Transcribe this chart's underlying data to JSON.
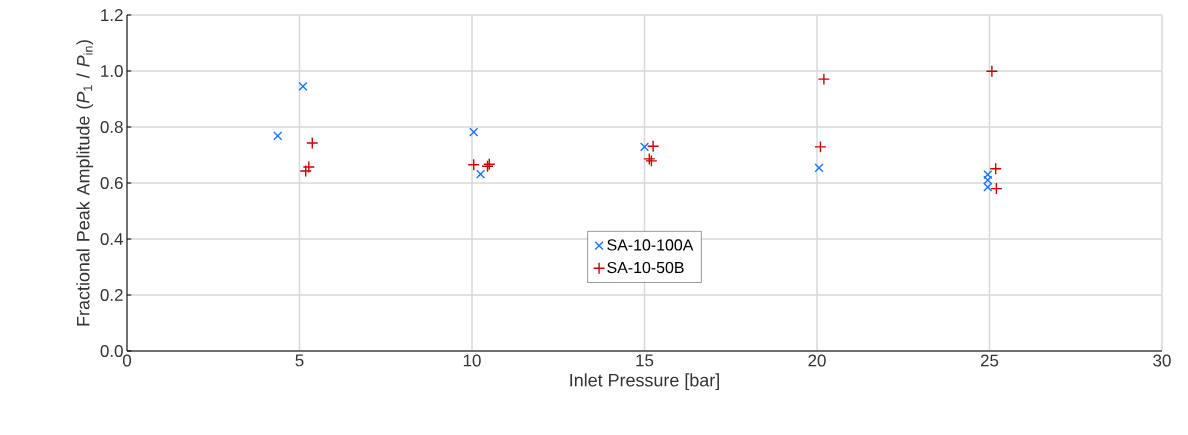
{
  "chart_data": {
    "type": "scatter",
    "xlabel": "Inlet Pressure [bar]",
    "ylabel": "Fractional Peak Amplitude (*P*$_{1}$ / *P*$_{in}$)",
    "xlim": [
      0,
      30
    ],
    "ylim": [
      0,
      1.2
    ],
    "xticks": [
      0,
      5,
      10,
      15,
      20,
      25,
      30
    ],
    "yticks": [
      {
        "value": 0,
        "label": "0.0"
      },
      {
        "value": 0.2,
        "label": "0.2"
      },
      {
        "value": 0.4,
        "label": "0.4"
      },
      {
        "value": 0.6,
        "label": "0.6"
      },
      {
        "value": 0.8,
        "label": "0.8"
      },
      {
        "value": 1.0,
        "label": "1.0"
      },
      {
        "value": 1.2,
        "label": "1.2"
      }
    ],
    "grid": true,
    "legend": "center",
    "series": [
      {
        "name": "SA-10-100A",
        "color": "#1a75ff",
        "marker": "cross",
        "x": [
          4.37,
          5.1,
          10.05,
          10.25,
          15.0,
          20.06,
          24.95,
          24.95,
          24.95
        ],
        "values": [
          0.768,
          0.945,
          0.782,
          0.632,
          0.729,
          0.654,
          0.63,
          0.61,
          0.585
        ]
      },
      {
        "name": "SA-10-50B",
        "color": "#cc0000",
        "marker": "plus",
        "x": [
          5.37,
          5.27,
          5.18,
          10.05,
          10.45,
          10.5,
          15.25,
          15.14,
          15.2,
          20.1,
          20.2,
          25.07,
          25.18,
          25.2
        ],
        "values": [
          0.743,
          0.657,
          0.643,
          0.665,
          0.66,
          0.667,
          0.731,
          0.686,
          0.679,
          0.729,
          0.971,
          0.999,
          0.651,
          0.58
        ]
      }
    ]
  }
}
